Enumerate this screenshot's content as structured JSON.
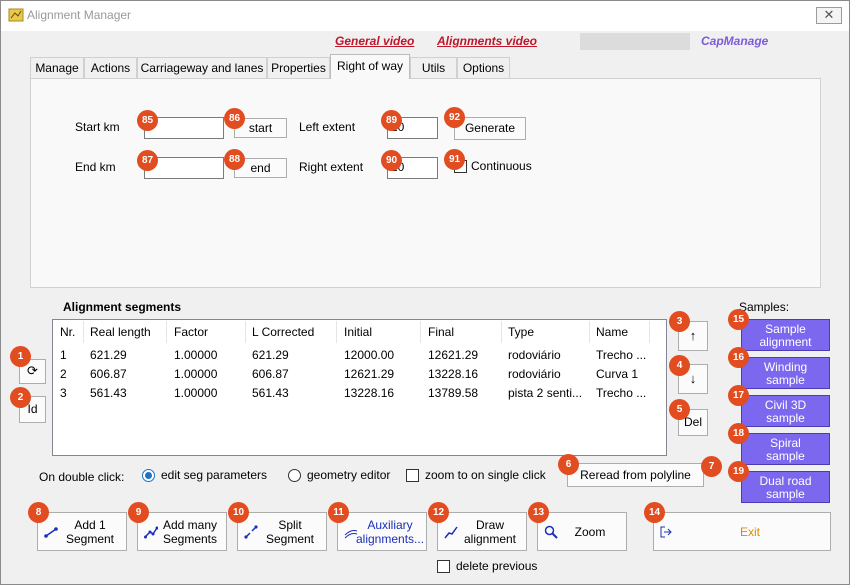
{
  "window": {
    "title": "Alignment Manager",
    "close_glyph": "✕"
  },
  "header_links": {
    "general_video": "General video",
    "alignments_video": "Alignments video",
    "capmanage": "CapManage"
  },
  "tabs": [
    {
      "label": "Manage"
    },
    {
      "label": "Actions"
    },
    {
      "label": "Carriageway and lanes"
    },
    {
      "label": "Properties"
    },
    {
      "label": "Right of way"
    },
    {
      "label": "Utils"
    },
    {
      "label": "Options"
    }
  ],
  "right_of_way": {
    "start_km_label": "Start km",
    "start_km_value": "",
    "start_button": "start",
    "end_km_label": "End km",
    "end_km_value": "",
    "end_button": "end",
    "left_extent_label": "Left extent",
    "left_extent_value": "20",
    "right_extent_label": "Right extent",
    "right_extent_value": "20",
    "generate_button": "Generate",
    "continuous_label": "Continuous",
    "continuous_checked": false
  },
  "segments": {
    "title": "Alignment segments",
    "columns": [
      "Nr.",
      "Real length",
      "Factor",
      "L Corrected",
      "Initial",
      "Final",
      "Type",
      "Name"
    ],
    "rows": [
      [
        "1",
        "621.29",
        "1.00000",
        "621.29",
        "12000.00",
        "12621.29",
        "rodoviário",
        "Trecho ..."
      ],
      [
        "2",
        "606.87",
        "1.00000",
        "606.87",
        "12621.29",
        "13228.16",
        "rodoviário",
        "Curva 1"
      ],
      [
        "3",
        "561.43",
        "1.00000",
        "561.43",
        "13228.16",
        "13789.58",
        "pista 2 senti...",
        "Trecho ..."
      ]
    ]
  },
  "side_buttons": {
    "refresh_glyph": "⟳",
    "id_label": "Id",
    "up_glyph": "↑",
    "down_glyph": "↓",
    "del_label": "Del"
  },
  "samples": {
    "label": "Samples:",
    "buttons": [
      {
        "line1": "Sample",
        "line2": "alignment"
      },
      {
        "line1": "Winding",
        "line2": "sample"
      },
      {
        "line1": "Civil 3D",
        "line2": "sample"
      },
      {
        "line1": "Spiral",
        "line2": "sample"
      },
      {
        "line1": "Dual road",
        "line2": "sample"
      }
    ]
  },
  "double_click": {
    "label": "On double click:",
    "option_edit": "edit seg parameters",
    "option_geometry": "geometry editor",
    "zoom_single_click": "zoom to on single click",
    "selected": "edit seg parameters"
  },
  "reread_button": "Reread from polyline",
  "bottom_buttons": {
    "add1": {
      "line1": "Add 1",
      "line2": "Segment"
    },
    "addmany": {
      "line1": "Add many",
      "line2": "Segments"
    },
    "split": {
      "line1": "Split",
      "line2": "Segment"
    },
    "auxiliary": {
      "line1": "Auxiliary",
      "line2": "alignments..."
    },
    "draw": {
      "line1": "Draw",
      "line2": "alignment"
    },
    "zoom": "Zoom",
    "exit": "Exit"
  },
  "delete_previous": "delete previous",
  "badges": [
    "1",
    "2",
    "3",
    "4",
    "5",
    "6",
    "7",
    "8",
    "9",
    "10",
    "11",
    "12",
    "13",
    "14",
    "15",
    "16",
    "17",
    "18",
    "19",
    "85",
    "86",
    "87",
    "88",
    "89",
    "90",
    "91",
    "92"
  ],
  "colors": {
    "badge": "#e14c21",
    "link_red": "#c0162a",
    "capmanage": "#7c5cd8",
    "sample_button": "#7b68ee",
    "exit_text": "#e08a00",
    "auxiliary_text": "#1a2fb8"
  }
}
